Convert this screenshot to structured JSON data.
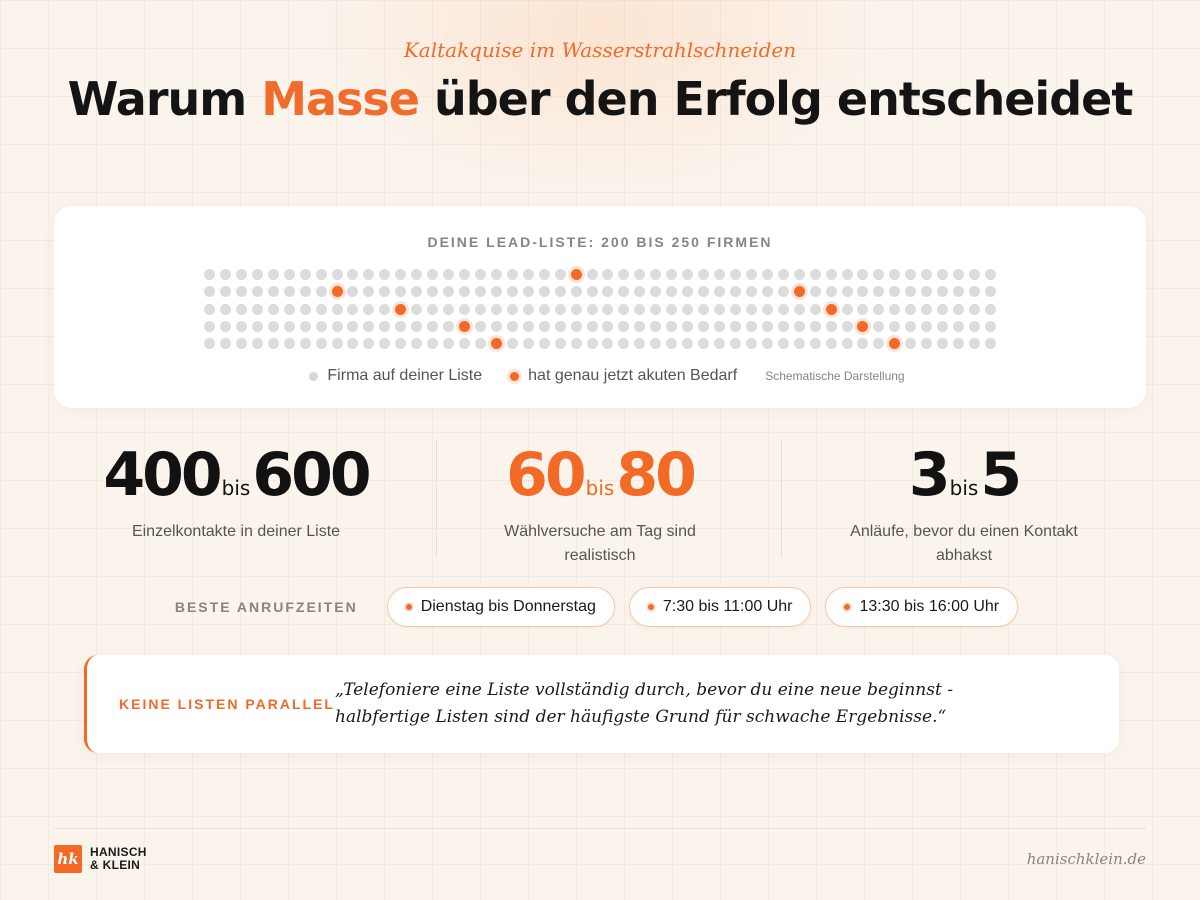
{
  "header": {
    "kicker": "Kaltakquise im Wasserstrahlschneiden",
    "title_prefix": "Warum ",
    "title_accent": "Masse",
    "title_suffix": " über den Erfolg entscheidet"
  },
  "lead_list": {
    "label": "DEINE LEAD-LISTE: 200 BIS 250 FIRMEN",
    "grid": {
      "rows": 5,
      "cols": 50,
      "highlighted": [
        [
          0,
          23
        ],
        [
          1,
          8
        ],
        [
          1,
          37
        ],
        [
          2,
          12
        ],
        [
          2,
          39
        ],
        [
          3,
          16
        ],
        [
          3,
          41
        ],
        [
          4,
          18
        ],
        [
          4,
          43
        ]
      ]
    },
    "legend": {
      "company": "Firma auf deiner Liste",
      "acute": "hat genau jetzt akuten Bedarf",
      "note": "Schematische Darstellung"
    },
    "colors": {
      "dot": "#dcdcdc",
      "highlight": "#f26a26"
    }
  },
  "stats": [
    {
      "from": "400",
      "bis": "bis",
      "to": "600",
      "desc": "Einzelkontakte in deiner Liste"
    },
    {
      "from": "60",
      "bis": "bis",
      "to": "80",
      "desc": "Wählversuche am Tag sind realistisch"
    },
    {
      "from": "3",
      "bis": "bis",
      "to": "5",
      "desc": "Anläufe, bevor du einen Kontakt abhakst"
    }
  ],
  "call_times": {
    "label": "BESTE ANRUFZEITEN",
    "pills": [
      "Dienstag bis Donnerstag",
      "7:30 bis 11:00 Uhr",
      "13:30 bis 16:00 Uhr"
    ]
  },
  "tip": {
    "label": "KEINE LISTEN PARALLEL",
    "line1": "„Telefoniere eine Liste vollständig durch, bevor du eine neue beginnst -",
    "line2": "halbfertige Listen sind der häufigste Grund für schwache Ergebnisse.“"
  },
  "footer": {
    "logo_line1": "HANISCH",
    "logo_line2": "& KLEIN",
    "logo_mark_icon": "hk-monogram-icon",
    "website": "hanischklein.de"
  },
  "accent_color": "#f06c2c"
}
